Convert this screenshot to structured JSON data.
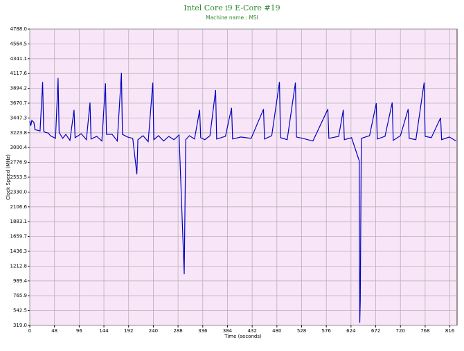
{
  "chart_data": {
    "type": "line",
    "title": "Intel Core i9 E-Core #19",
    "subtitle": "Machine name : MSI",
    "x_label": "Time (seconds)",
    "y_label": "Clock Speed (MHz)",
    "xlim": [
      0,
      830
    ],
    "ylim": [
      319,
      4788
    ],
    "xticks": [
      0,
      48,
      96,
      144,
      192,
      240,
      288,
      336,
      384,
      432,
      480,
      528,
      576,
      624,
      672,
      720,
      768,
      816
    ],
    "yticks": [
      {
        "value": 319,
        "label": "319.0"
      },
      542.5,
      765.9,
      989.4,
      1212.8,
      1436.3,
      1659.7,
      1883.1,
      2106.6,
      {
        "value": 2330,
        "label": "2330.0"
      },
      2553.5,
      2776.9,
      3000.4,
      3223.8,
      3447.3,
      3670.7,
      3894.2,
      4117.6,
      4341.1,
      4564.5,
      {
        "value": 4788,
        "label": "4788.0"
      }
    ],
    "grid": true,
    "series": [
      {
        "color": "#0000c0",
        "x": [
          0,
          2,
          4,
          8,
          10,
          16,
          20,
          25,
          27,
          30,
          36,
          40,
          50,
          55,
          57,
          64,
          70,
          78,
          86,
          88,
          100,
          110,
          117,
          119,
          130,
          140,
          147,
          149,
          160,
          170,
          178,
          180,
          190,
          200,
          208,
          210,
          220,
          230,
          239,
          241,
          250,
          260,
          270,
          280,
          290,
          300,
          301,
          303,
          310,
          320,
          330,
          332,
          340,
          350,
          361,
          363,
          380,
          392,
          394,
          410,
          430,
          454,
          456,
          470,
          485,
          487,
          500,
          516,
          518,
          530,
          550,
          579,
          581,
          600,
          609,
          611,
          625,
          640,
          641,
          642,
          644,
          660,
          673,
          675,
          690,
          704,
          706,
          720,
          735,
          737,
          750,
          766,
          768,
          780,
          798,
          800,
          815,
          828
        ],
        "values": [
          3400,
          3330,
          3410,
          3380,
          3270,
          3260,
          3250,
          3990,
          3250,
          3230,
          3220,
          3180,
          3140,
          4050,
          3230,
          3140,
          3200,
          3110,
          3570,
          3150,
          3210,
          3120,
          3680,
          3130,
          3170,
          3100,
          3970,
          3200,
          3200,
          3100,
          4130,
          3200,
          3160,
          3140,
          2600,
          3120,
          3180,
          3090,
          3980,
          3120,
          3180,
          3100,
          3170,
          3120,
          3190,
          1090,
          1780,
          3120,
          3180,
          3130,
          3570,
          3150,
          3120,
          3180,
          3870,
          3130,
          3170,
          3600,
          3130,
          3160,
          3140,
          3580,
          3130,
          3180,
          3990,
          3150,
          3120,
          3980,
          3160,
          3140,
          3100,
          3580,
          3140,
          3170,
          3570,
          3120,
          3150,
          2800,
          360,
          690,
          3140,
          3180,
          3670,
          3130,
          3170,
          3680,
          3110,
          3180,
          3580,
          3140,
          3120,
          3980,
          3170,
          3150,
          3450,
          3120,
          3160,
          3100
        ]
      }
    ]
  }
}
